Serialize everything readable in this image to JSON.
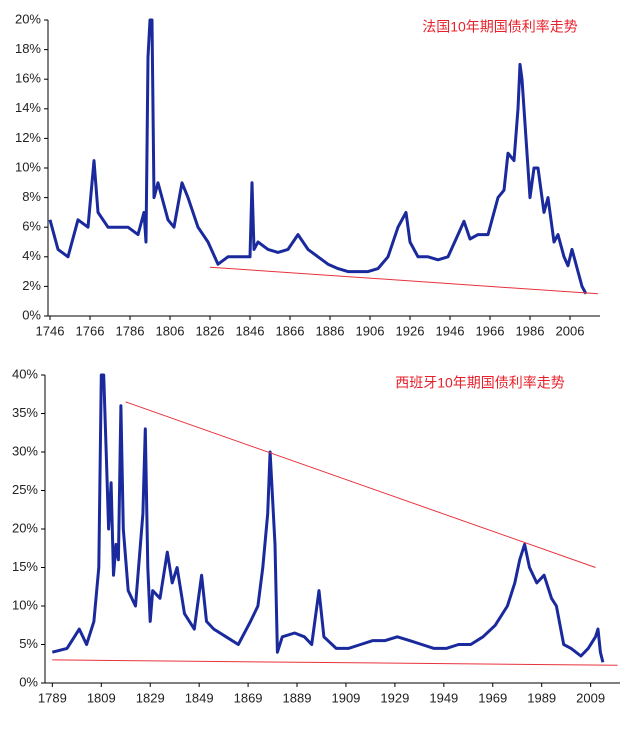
{
  "chart_data": [
    {
      "type": "line",
      "title": "法国10年期国债利率走势",
      "x": [
        1746,
        1750,
        1755,
        1760,
        1765,
        1768,
        1770,
        1775,
        1780,
        1785,
        1790,
        1793,
        1794,
        1795,
        1796,
        1797,
        1798,
        1800,
        1802,
        1805,
        1808,
        1812,
        1815,
        1820,
        1825,
        1830,
        1835,
        1840,
        1846,
        1847,
        1848,
        1850,
        1855,
        1860,
        1865,
        1870,
        1875,
        1880,
        1885,
        1890,
        1895,
        1900,
        1905,
        1910,
        1915,
        1920,
        1924,
        1926,
        1930,
        1935,
        1940,
        1945,
        1950,
        1953,
        1956,
        1960,
        1965,
        1970,
        1973,
        1975,
        1978,
        1980,
        1981,
        1982,
        1984,
        1986,
        1988,
        1990,
        1993,
        1995,
        1998,
        2000,
        2003,
        2005,
        2007,
        2010,
        2012,
        2014
      ],
      "values": [
        6.5,
        4.5,
        4,
        6.5,
        6,
        10.5,
        7,
        6,
        6,
        6,
        5.5,
        7,
        5,
        17.5,
        20,
        20,
        8,
        9,
        8,
        6.5,
        6,
        9,
        8,
        6,
        5,
        3.5,
        4,
        4,
        4,
        9,
        4.5,
        5,
        4.5,
        4.3,
        4.5,
        5.5,
        4.5,
        4,
        3.5,
        3.2,
        3,
        3,
        3,
        3.2,
        4,
        6,
        7,
        5,
        4,
        4,
        3.8,
        4,
        5.5,
        6.4,
        5.2,
        5.5,
        5.5,
        8,
        8.5,
        11,
        10.5,
        14,
        17,
        16,
        12,
        8,
        10,
        10,
        7,
        8,
        5,
        5.5,
        4,
        3.4,
        4.5,
        3,
        2,
        1.5
      ],
      "color": "#1a2a9c",
      "trend_lines": [
        {
          "x": [
            1826,
            2020
          ],
          "values": [
            3.3,
            1.5
          ],
          "color": "#e8323c"
        }
      ],
      "xlim": [
        1745,
        2021
      ],
      "xticks": [
        1746,
        1766,
        1786,
        1806,
        1826,
        1846,
        1866,
        1886,
        1906,
        1926,
        1946,
        1966,
        1986,
        2006
      ],
      "ylim": [
        0,
        20
      ],
      "yticks": [
        {
          "value": 0,
          "label": "0%"
        },
        {
          "value": 2,
          "label": "2%"
        },
        {
          "value": 4,
          "label": "4%"
        },
        {
          "value": 6,
          "label": "6%"
        },
        {
          "value": 8,
          "label": "8%"
        },
        {
          "value": 10,
          "label": "10%"
        },
        {
          "value": 12,
          "label": "12%"
        },
        {
          "value": 14,
          "label": "14%"
        },
        {
          "value": 16,
          "label": "16%"
        },
        {
          "value": 18,
          "label": "18%"
        },
        {
          "value": 20,
          "label": "20%"
        }
      ]
    },
    {
      "type": "line",
      "title": "西班牙10年期国债利率走势",
      "x": [
        1789,
        1795,
        1800,
        1803,
        1806,
        1808,
        1809,
        1810,
        1811,
        1812,
        1813,
        1814,
        1815,
        1816,
        1817,
        1818,
        1820,
        1823,
        1826,
        1827,
        1828,
        1829,
        1830,
        1833,
        1836,
        1838,
        1840,
        1843,
        1847,
        1850,
        1852,
        1855,
        1860,
        1865,
        1870,
        1873,
        1875,
        1877,
        1878,
        1880,
        1881,
        1883,
        1888,
        1892,
        1895,
        1898,
        1900,
        1905,
        1910,
        1915,
        1920,
        1925,
        1930,
        1935,
        1940,
        1945,
        1950,
        1955,
        1960,
        1965,
        1970,
        1975,
        1978,
        1980,
        1982,
        1984,
        1987,
        1990,
        1993,
        1995,
        1998,
        2001,
        2005,
        2008,
        2011,
        2012,
        2013,
        2014
      ],
      "values": [
        4,
        4.5,
        7,
        5,
        8,
        15,
        40,
        40,
        30,
        20,
        26,
        14,
        18,
        16,
        36,
        20,
        12,
        10,
        22,
        33,
        15,
        8,
        12,
        11,
        17,
        13,
        15,
        9,
        7,
        14,
        8,
        7,
        6,
        5,
        8,
        10,
        15,
        22,
        30,
        18,
        4,
        6,
        6.5,
        6,
        5,
        12,
        6,
        4.5,
        4.5,
        5,
        5.5,
        5.5,
        6,
        5.5,
        5,
        4.5,
        4.5,
        5,
        5,
        6,
        7.5,
        10,
        13,
        16,
        18,
        15,
        13,
        14,
        11,
        10,
        5,
        4.5,
        3.5,
        4.5,
        6,
        7,
        4,
        2.7
      ],
      "color": "#1a2a9c",
      "trend_lines": [
        {
          "x": [
            1819,
            2011
          ],
          "values": [
            36.5,
            15
          ],
          "color": "#e8323c"
        },
        {
          "x": [
            1789,
            2020
          ],
          "values": [
            3,
            2.3
          ],
          "color": "#e8323c"
        }
      ],
      "xlim": [
        1786,
        2021
      ],
      "xticks": [
        1789,
        1809,
        1829,
        1849,
        1869,
        1889,
        1909,
        1929,
        1949,
        1969,
        1989,
        2009
      ],
      "ylim": [
        0,
        40
      ],
      "yticks": [
        {
          "value": 0,
          "label": "0%"
        },
        {
          "value": 5,
          "label": "5%"
        },
        {
          "value": 10,
          "label": "10%"
        },
        {
          "value": 15,
          "label": "15%"
        },
        {
          "value": 20,
          "label": "20%"
        },
        {
          "value": 25,
          "label": "25%"
        },
        {
          "value": 30,
          "label": "30%"
        },
        {
          "value": 35,
          "label": "35%"
        },
        {
          "value": 40,
          "label": "40%"
        }
      ]
    }
  ]
}
